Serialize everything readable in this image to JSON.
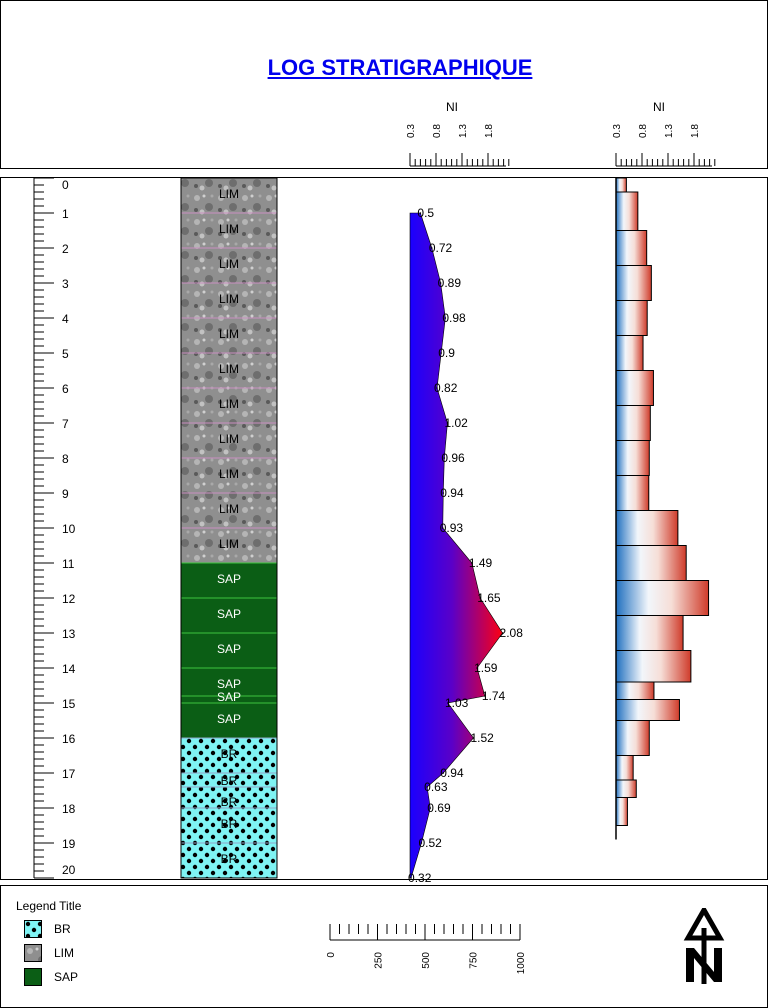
{
  "title": "LOG STRATIGRAPHIQUE",
  "header": {
    "track1_label": "NI",
    "track2_label": "NI",
    "scale_ticks": [
      "0.3",
      "0.8",
      "1.3",
      "1.8"
    ]
  },
  "depth_axis": {
    "min": 0,
    "max": 20,
    "labels": [
      "0",
      "1",
      "2",
      "3",
      "4",
      "5",
      "6",
      "7",
      "8",
      "9",
      "10",
      "11",
      "12",
      "13",
      "14",
      "15",
      "16",
      "17",
      "18",
      "19",
      "20"
    ]
  },
  "legend": {
    "title": "Legend Title",
    "items": [
      {
        "label": "BR",
        "pattern": "dots-cyan"
      },
      {
        "label": "LIM",
        "pattern": "grey-texture"
      },
      {
        "label": "SAP",
        "pattern": "dark-green"
      }
    ]
  },
  "scale_bar": {
    "labels": [
      "0",
      "250",
      "500",
      "750",
      "1000"
    ]
  },
  "north_arrow_icon": "north-arrow-icon",
  "colors": {
    "sap_fill": "#0b5e15",
    "sap_line": "#3ec43e",
    "br_fill": "#7ff4f4",
    "lim_fill": "#8c8c8c",
    "area_low": "#0000ff",
    "area_high": "#ff0000"
  },
  "chart_data": {
    "type": "area",
    "track": "NI",
    "xlim": [
      0.3,
      2.3
    ],
    "lithology": [
      {
        "top": 0,
        "bottom": 1,
        "label": "LIM",
        "type": "LIM"
      },
      {
        "top": 1,
        "bottom": 2,
        "label": "LIM",
        "type": "LIM"
      },
      {
        "top": 2,
        "bottom": 3,
        "label": "LIM",
        "type": "LIM"
      },
      {
        "top": 3,
        "bottom": 4,
        "label": "LIM",
        "type": "LIM"
      },
      {
        "top": 4,
        "bottom": 5,
        "label": "LIM",
        "type": "LIM"
      },
      {
        "top": 5,
        "bottom": 6,
        "label": "LIM",
        "type": "LIM"
      },
      {
        "top": 6,
        "bottom": 7,
        "label": "LIM",
        "type": "LIM"
      },
      {
        "top": 7,
        "bottom": 8,
        "label": "LIM",
        "type": "LIM"
      },
      {
        "top": 8,
        "bottom": 9,
        "label": "LIM",
        "type": "LIM"
      },
      {
        "top": 9,
        "bottom": 10,
        "label": "LIM",
        "type": "LIM"
      },
      {
        "top": 10,
        "bottom": 11,
        "label": "LIM",
        "type": "LIM"
      },
      {
        "top": 11,
        "bottom": 12,
        "label": "SAP",
        "type": "SAP"
      },
      {
        "top": 12,
        "bottom": 13,
        "label": "SAP",
        "type": "SAP"
      },
      {
        "top": 13,
        "bottom": 14,
        "label": "SAP",
        "type": "SAP"
      },
      {
        "top": 14,
        "bottom": 14.8,
        "label": "SAP",
        "type": "SAP"
      },
      {
        "top": 14.8,
        "bottom": 15,
        "label": "SAP",
        "type": "SAP"
      },
      {
        "top": 15,
        "bottom": 16,
        "label": "SAP",
        "type": "SAP"
      },
      {
        "top": 16,
        "bottom": 17,
        "label": "BR",
        "type": "BR"
      },
      {
        "top": 17,
        "bottom": 17.4,
        "label": "BR",
        "type": "BR"
      },
      {
        "top": 17.4,
        "bottom": 18,
        "label": "BR",
        "type": "BR"
      },
      {
        "top": 18,
        "bottom": 19,
        "label": "BR",
        "type": "BR"
      },
      {
        "top": 19,
        "bottom": 20,
        "label": "BR",
        "type": "BR"
      }
    ],
    "ni_curve": [
      {
        "depth": 1,
        "value": 0.5,
        "label": "0.5"
      },
      {
        "depth": 2,
        "value": 0.72,
        "label": "0.72"
      },
      {
        "depth": 3,
        "value": 0.89,
        "label": "0.89"
      },
      {
        "depth": 4,
        "value": 0.98,
        "label": "0.98"
      },
      {
        "depth": 5,
        "value": 0.9,
        "label": "0.9"
      },
      {
        "depth": 6,
        "value": 0.82,
        "label": "0.82"
      },
      {
        "depth": 7,
        "value": 1.02,
        "label": "1.02"
      },
      {
        "depth": 8,
        "value": 0.96,
        "label": "0.96"
      },
      {
        "depth": 9,
        "value": 0.94,
        "label": "0.94"
      },
      {
        "depth": 10,
        "value": 0.93,
        "label": "0.93"
      },
      {
        "depth": 11,
        "value": 1.49,
        "label": "1.49"
      },
      {
        "depth": 12,
        "value": 1.65,
        "label": "1.65"
      },
      {
        "depth": 13,
        "value": 2.08,
        "label": "2.08"
      },
      {
        "depth": 14,
        "value": 1.59,
        "label": "1.59"
      },
      {
        "depth": 14.8,
        "value": 1.74,
        "label": "1.74"
      },
      {
        "depth": 15,
        "value": 1.03,
        "label": "1.03"
      },
      {
        "depth": 16,
        "value": 1.52,
        "label": "1.52"
      },
      {
        "depth": 17,
        "value": 0.94,
        "label": "0.94"
      },
      {
        "depth": 17.4,
        "value": 0.63,
        "label": "0.63"
      },
      {
        "depth": 18,
        "value": 0.69,
        "label": "0.69"
      },
      {
        "depth": 19,
        "value": 0.52,
        "label": "0.52"
      },
      {
        "depth": 20,
        "value": 0.32,
        "label": "0.32"
      }
    ],
    "ni_bars": [
      {
        "top": 0,
        "bottom": 0.4,
        "value": 0.5
      },
      {
        "top": 0.4,
        "bottom": 1.5,
        "value": 0.72
      },
      {
        "top": 1.5,
        "bottom": 2.5,
        "value": 0.89
      },
      {
        "top": 2.5,
        "bottom": 3.5,
        "value": 0.98
      },
      {
        "top": 3.5,
        "bottom": 4.5,
        "value": 0.9
      },
      {
        "top": 4.5,
        "bottom": 5.5,
        "value": 0.82
      },
      {
        "top": 5.5,
        "bottom": 6.5,
        "value": 1.02
      },
      {
        "top": 6.5,
        "bottom": 7.5,
        "value": 0.96
      },
      {
        "top": 7.5,
        "bottom": 8.5,
        "value": 0.94
      },
      {
        "top": 8.5,
        "bottom": 9.5,
        "value": 0.93
      },
      {
        "top": 9.5,
        "bottom": 10.5,
        "value": 1.49
      },
      {
        "top": 10.5,
        "bottom": 11.5,
        "value": 1.65
      },
      {
        "top": 11.5,
        "bottom": 12.5,
        "value": 2.08
      },
      {
        "top": 12.5,
        "bottom": 13.5,
        "value": 1.59
      },
      {
        "top": 13.5,
        "bottom": 14.4,
        "value": 1.74
      },
      {
        "top": 14.4,
        "bottom": 14.9,
        "value": 1.03
      },
      {
        "top": 14.9,
        "bottom": 15.5,
        "value": 1.52
      },
      {
        "top": 15.5,
        "bottom": 16.5,
        "value": 0.94
      },
      {
        "top": 16.5,
        "bottom": 17.2,
        "value": 0.63
      },
      {
        "top": 17.2,
        "bottom": 17.7,
        "value": 0.69
      },
      {
        "top": 17.7,
        "bottom": 18.5,
        "value": 0.52
      }
    ]
  }
}
